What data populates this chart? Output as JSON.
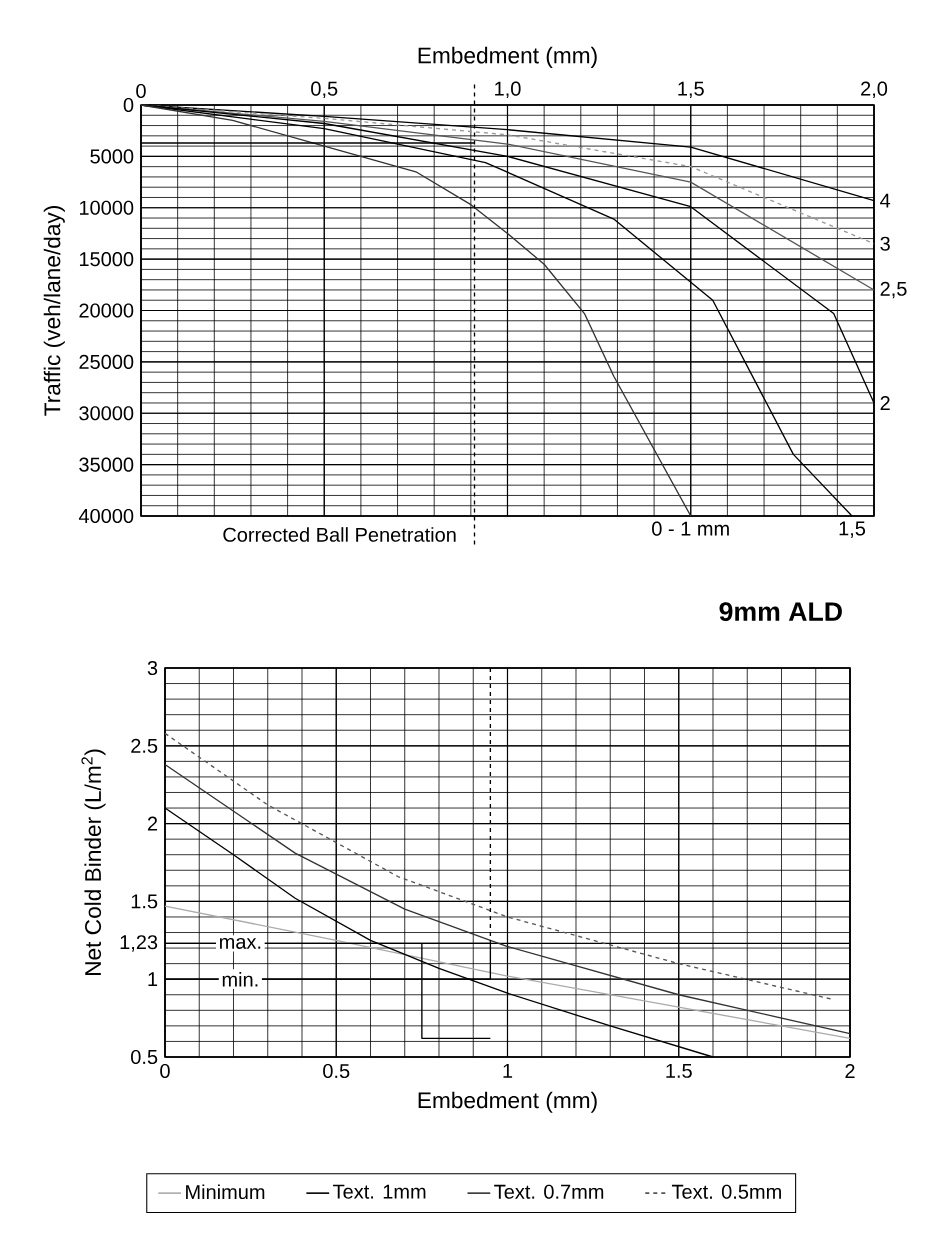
{
  "chart_data": [
    {
      "type": "line",
      "xlabel": "Embedment (mm)",
      "ylabel": "Traffic (veh/lane/day)",
      "xlim": [
        0,
        2
      ],
      "xticks": [
        0,
        {
          "value": 0.5,
          "label": "0,5"
        },
        {
          "value": 1,
          "label": "1,0"
        },
        {
          "value": 1.5,
          "label": "1,5"
        },
        {
          "value": 2,
          "label": "2,0"
        }
      ],
      "ylim": [
        40000,
        0
      ],
      "yticks": [
        0,
        5000,
        10000,
        15000,
        20000,
        25000,
        30000,
        35000,
        40000
      ],
      "grid": true,
      "legend": false,
      "marker": "none",
      "ref_lines": [
        {
          "axis": "x",
          "value": 0.91,
          "label": "Corrected Ball Penetration",
          "line_style": "dashed",
          "color": "#000000"
        }
      ],
      "series": [
        {
          "name": "4",
          "color": "#000000",
          "line_style": "solid",
          "x": [
            0,
            0.5,
            1,
            1.5,
            2
          ],
          "values": [
            0,
            1100,
            2400,
            4100,
            9300
          ]
        },
        {
          "name": "3",
          "color": "#999999",
          "line_style": "dashed",
          "x": [
            0,
            0.5,
            1,
            1.5,
            2
          ],
          "values": [
            0,
            1300,
            2900,
            6000,
            13500
          ]
        },
        {
          "name": "2,5",
          "color": "#555555",
          "line_style": "solid",
          "x": [
            0,
            0.5,
            1,
            1.5,
            2
          ],
          "values": [
            0,
            1600,
            3800,
            7500,
            18000
          ]
        },
        {
          "name": "2",
          "color": "#000000",
          "line_style": "solid",
          "x": [
            0,
            0.5,
            1,
            1.5,
            1.89,
            2
          ],
          "values": [
            0,
            1800,
            5000,
            9900,
            20300,
            29000
          ]
        },
        {
          "name": "1,5",
          "color": "#000000",
          "line_style": "solid",
          "x": [
            0,
            0.5,
            0.94,
            1.29,
            1.56,
            1.78,
            1.94
          ],
          "values": [
            0,
            2300,
            5600,
            11100,
            19000,
            34000,
            40000
          ]
        },
        {
          "name": "0 - 1 mm",
          "color": "#333333",
          "line_style": "solid",
          "x": [
            0,
            0.25,
            0.5,
            0.75,
            0.9,
            1,
            1.1,
            1.21,
            1.29,
            1.5
          ],
          "values": [
            0,
            1500,
            4000,
            6500,
            9700,
            12500,
            15500,
            20300,
            26400,
            40000
          ]
        },
        {
          "color": "#000000",
          "line_style": "solid",
          "x": [
            0,
            0.91
          ],
          "values": [
            3700,
            3700
          ]
        }
      ]
    },
    {
      "type": "line",
      "title": "9mm ALD",
      "xlabel": "Embedment (mm)",
      "ylabel": "Net Cold Binder (L/m$^{2}$)",
      "xlim": [
        0,
        2
      ],
      "xticks": [
        0,
        0.5,
        1,
        1.5,
        2
      ],
      "ylim": [
        0.5,
        3
      ],
      "yticks": [
        0.5,
        1,
        {
          "value": 1.23,
          "label": "1,23"
        },
        1.5,
        2,
        2.5,
        3
      ],
      "grid": true,
      "legend": "bottom",
      "marker": "none",
      "annotations": [
        {
          "text": "max.",
          "x": 0.22,
          "y": 1.23
        },
        {
          "text": "min.",
          "x": 0.22,
          "y": 1.0
        }
      ],
      "series": [
        {
          "name": "Minimum",
          "color": "#aaaaaa",
          "line_style": "solid",
          "x": [
            0,
            0.5,
            1,
            1.5,
            2
          ],
          "values": [
            1.47,
            1.25,
            1.02,
            0.82,
            0.62
          ]
        },
        {
          "name": "Text. 1mm",
          "color": "#000000",
          "line_style": "solid",
          "x": [
            0,
            0.2,
            0.38,
            0.6,
            0.8,
            1,
            1.3,
            1.6
          ],
          "values": [
            2.1,
            1.8,
            1.52,
            1.25,
            1.07,
            0.91,
            0.7,
            0.5
          ]
        },
        {
          "name": "Text. 0.7mm",
          "color": "#333333",
          "line_style": "solid",
          "x": [
            0,
            0.38,
            0.7,
            1,
            1.5,
            2
          ],
          "values": [
            2.38,
            1.81,
            1.45,
            1.21,
            0.9,
            0.65
          ]
        },
        {
          "name": "Text. 0.5mm",
          "color": "#555555",
          "line_style": "dashed",
          "x": [
            0,
            0.3,
            0.68,
            1,
            1.5,
            1.95
          ],
          "values": [
            2.58,
            2.12,
            1.66,
            1.4,
            1.1,
            0.87
          ]
        },
        {
          "color": "#000000",
          "line_style": "dashed",
          "x": [
            0.95,
            0.95
          ],
          "values": [
            3,
            1.23
          ]
        },
        {
          "color": "#000000",
          "line_style": "solid",
          "x": [
            0.95,
            0
          ],
          "values": [
            1.23,
            1.23
          ]
        },
        {
          "color": "#000000",
          "line_style": "solid",
          "x": [
            0.95,
            0.95,
            0
          ],
          "values": [
            1.23,
            1.0,
            1.0
          ]
        },
        {
          "color": "#000000",
          "line_style": "solid",
          "x": [
            0.75,
            0.75,
            0.95
          ],
          "values": [
            1.23,
            0.62,
            0.62
          ]
        }
      ]
    }
  ]
}
